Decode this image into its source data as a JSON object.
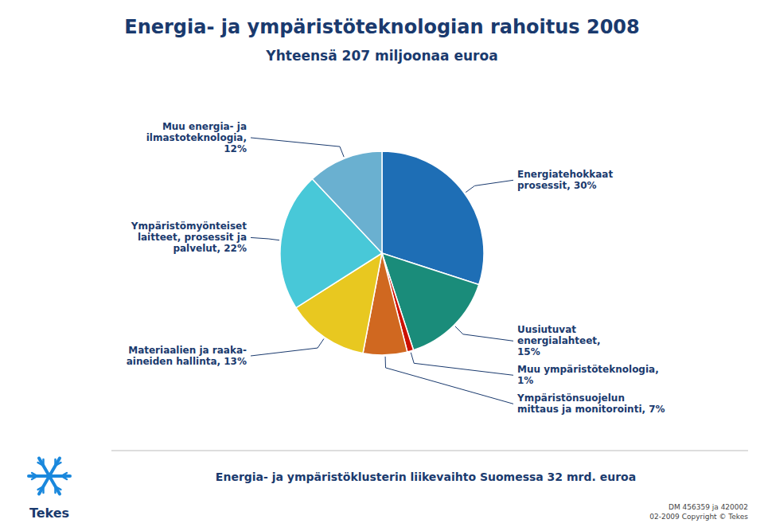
{
  "chart_data": {
    "type": "pie",
    "title": "Energia- ja ympäristöteknologian rahoitus 2008",
    "subtitle": "Yhteensä 207 miljoonaa euroa",
    "categories": [
      "Energiatehokkaat\nprosessit, 30%",
      "Uusiutuvat\nenergialahteet,\n15%",
      "Muu ympäristöteknologia,\n1%",
      "Ympäristönsuojelun\nmittaus ja monitorointi, 7%",
      "Materiaalien ja raaka-\naineiden hallinta, 13%",
      "Ympäristömyönteiset\nlaitteet, prosessit ja\npalvelut, 22%",
      "Muu energia- ja\nilmastoteknologia,\n12%"
    ],
    "values": [
      30,
      15,
      1,
      7,
      13,
      22,
      12
    ],
    "colors": [
      "#1e6eb5",
      "#1a8c7a",
      "#cc1100",
      "#d06820",
      "#e8c820",
      "#48c8d8",
      "#6ab0d0"
    ],
    "annotations": [
      "Energia- ja ympäristöklusterin liikevaihto Suomessa 32 mrd. euroa",
      "DM 456359 ja 420002\n02-2009 Copyright © Tekes",
      "Tekes"
    ]
  }
}
